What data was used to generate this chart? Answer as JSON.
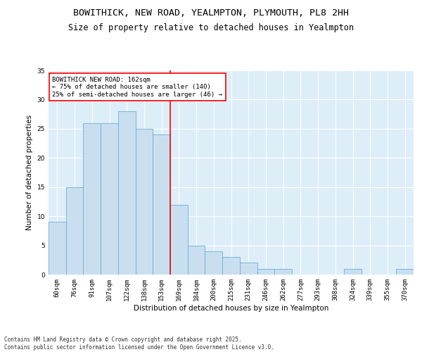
{
  "title_line1": "BOWITHICK, NEW ROAD, YEALMPTON, PLYMOUTH, PL8 2HH",
  "title_line2": "Size of property relative to detached houses in Yealmpton",
  "xlabel": "Distribution of detached houses by size in Yealmpton",
  "ylabel": "Number of detached properties",
  "bar_labels": [
    "60sqm",
    "76sqm",
    "91sqm",
    "107sqm",
    "122sqm",
    "138sqm",
    "153sqm",
    "169sqm",
    "184sqm",
    "200sqm",
    "215sqm",
    "231sqm",
    "246sqm",
    "262sqm",
    "277sqm",
    "293sqm",
    "308sqm",
    "324sqm",
    "339sqm",
    "355sqm",
    "370sqm"
  ],
  "bar_values": [
    9,
    15,
    26,
    26,
    28,
    25,
    24,
    12,
    5,
    4,
    3,
    2,
    1,
    1,
    0,
    0,
    0,
    1,
    0,
    0,
    1
  ],
  "bar_color": "#c9dff0",
  "bar_edge_color": "#6aaed6",
  "background_color": "#ddeef9",
  "grid_color": "#ffffff",
  "vline_color": "red",
  "vline_x": 6.5,
  "annotation_text": "BOWITHICK NEW ROAD: 162sqm\n← 75% of detached houses are smaller (140)\n25% of semi-detached houses are larger (46) →",
  "annotation_box_color": "white",
  "annotation_box_edge": "red",
  "ylim": [
    0,
    35
  ],
  "yticks": [
    0,
    5,
    10,
    15,
    20,
    25,
    30,
    35
  ],
  "footer_text": "Contains HM Land Registry data © Crown copyright and database right 2025.\nContains public sector information licensed under the Open Government Licence v3.0.",
  "title_fontsize": 9.5,
  "subtitle_fontsize": 8.5,
  "axis_label_fontsize": 7.5,
  "tick_fontsize": 6.5,
  "annotation_fontsize": 6.5,
  "footer_fontsize": 5.5
}
